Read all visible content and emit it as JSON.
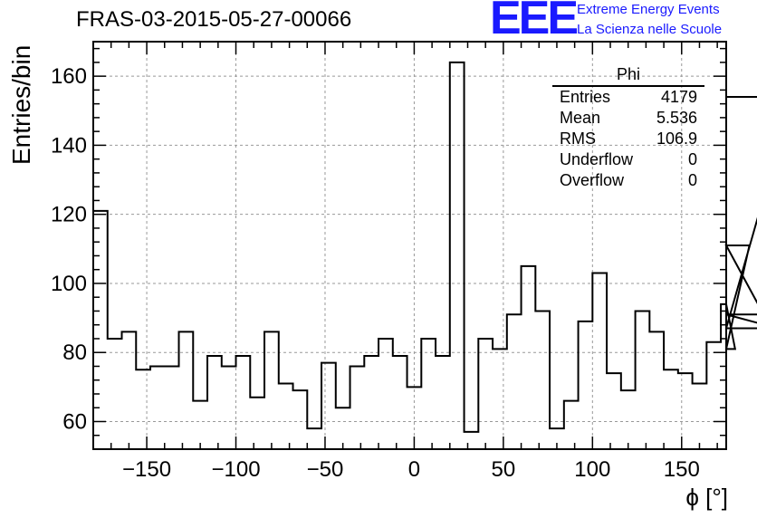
{
  "chart_data": {
    "type": "histogram",
    "title": "FRAS-03-2015-05-27-00066",
    "xlabel": "ϕ [°]",
    "ylabel": "Entries/bin",
    "xlim": [
      -180,
      175
    ],
    "ylim": [
      52,
      170
    ],
    "bin_width": 8,
    "bin_start": -180,
    "values": [
      121,
      84,
      86,
      75,
      76,
      76,
      86,
      66,
      79,
      76,
      79,
      67,
      86,
      71,
      69,
      58,
      77,
      64,
      76,
      79,
      84,
      79,
      70,
      84,
      79,
      164,
      57,
      84,
      81,
      91,
      105,
      92,
      58,
      66,
      89,
      103,
      74,
      69,
      92,
      86,
      75,
      74,
      71,
      83,
      94,
      81,
      111,
      91,
      87,
      154
    ],
    "x_ticks": [
      -150,
      -100,
      -50,
      0,
      50,
      100,
      150
    ],
    "x_tick_labels": [
      "−150",
      "−100",
      "−50",
      "0",
      "50",
      "100",
      "150"
    ],
    "y_ticks": [
      60,
      80,
      100,
      120,
      140,
      160
    ],
    "y_tick_labels": [
      "60",
      "80",
      "100",
      "120",
      "140",
      "160"
    ],
    "grid": true,
    "stats_box": {
      "header": "Phi",
      "rows": [
        {
          "label": "Entries",
          "value": "4179"
        },
        {
          "label": "Mean",
          "value": "5.536"
        },
        {
          "label": "RMS",
          "value": "106.9"
        },
        {
          "label": "Underflow",
          "value": "0"
        },
        {
          "label": "Overflow",
          "value": "0"
        }
      ]
    }
  },
  "logo": {
    "text": "EEE",
    "line1": "Extreme Energy Events",
    "line2": "La Scienza nelle Scuole"
  },
  "colors": {
    "logo": "#1a1aff",
    "line": "#000000",
    "grid": "#999999"
  }
}
